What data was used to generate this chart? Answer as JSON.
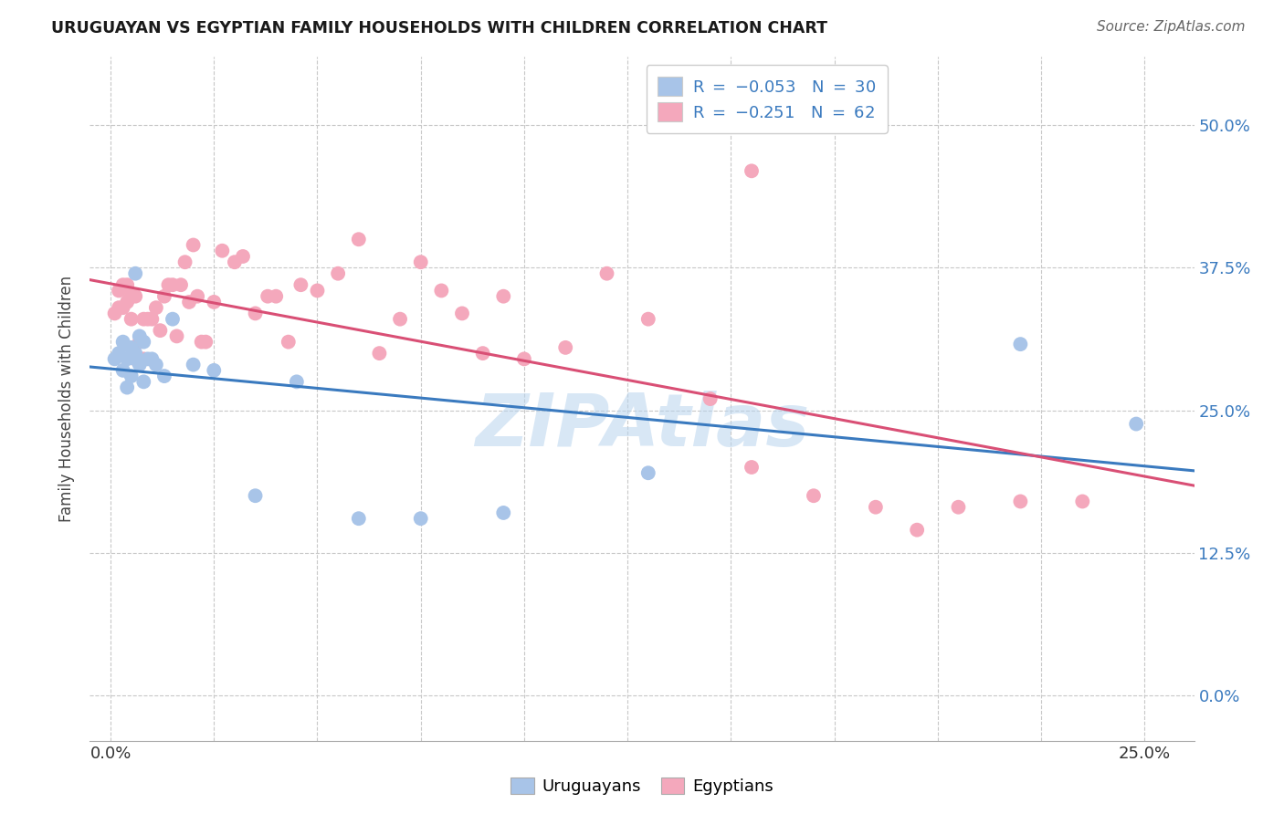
{
  "title": "URUGUAYAN VS EGYPTIAN FAMILY HOUSEHOLDS WITH CHILDREN CORRELATION CHART",
  "source": "Source: ZipAtlas.com",
  "ylabel": "Family Households with Children",
  "legend_label1": "Uruguayans",
  "legend_label2": "Egyptians",
  "uruguayan_color": "#a8c4e8",
  "egyptian_color": "#f4a8bc",
  "trendline_uruguayan": "#3a7abf",
  "trendline_egyptian": "#d94f75",
  "watermark": "ZIPAtlas",
  "watermark_color": "#b8d4ee",
  "background_color": "#ffffff",
  "grid_color": "#c8c8c8",
  "yticks": [
    0.0,
    0.125,
    0.25,
    0.375,
    0.5
  ],
  "ytick_labels_right": [
    "0.0%",
    "12.5%",
    "25.0%",
    "37.5%",
    "50.0%"
  ],
  "xticks": [
    0.0,
    0.025,
    0.05,
    0.075,
    0.1,
    0.125,
    0.15,
    0.175,
    0.2,
    0.225,
    0.25
  ],
  "xlim": [
    -0.005,
    0.262
  ],
  "ylim": [
    -0.04,
    0.56
  ],
  "uruguayan_x": [
    0.001,
    0.002,
    0.003,
    0.003,
    0.004,
    0.004,
    0.005,
    0.005,
    0.006,
    0.006,
    0.006,
    0.007,
    0.007,
    0.008,
    0.008,
    0.009,
    0.01,
    0.011,
    0.013,
    0.015,
    0.02,
    0.025,
    0.035,
    0.045,
    0.06,
    0.075,
    0.095,
    0.13,
    0.22,
    0.248
  ],
  "uruguayan_y": [
    0.295,
    0.3,
    0.285,
    0.31,
    0.295,
    0.27,
    0.305,
    0.28,
    0.3,
    0.295,
    0.37,
    0.315,
    0.29,
    0.31,
    0.275,
    0.295,
    0.295,
    0.29,
    0.28,
    0.33,
    0.29,
    0.285,
    0.175,
    0.275,
    0.155,
    0.155,
    0.16,
    0.195,
    0.308,
    0.238
  ],
  "egyptian_x": [
    0.001,
    0.002,
    0.002,
    0.003,
    0.003,
    0.004,
    0.004,
    0.005,
    0.005,
    0.006,
    0.006,
    0.007,
    0.007,
    0.008,
    0.008,
    0.009,
    0.01,
    0.011,
    0.012,
    0.013,
    0.014,
    0.015,
    0.016,
    0.017,
    0.018,
    0.019,
    0.02,
    0.021,
    0.022,
    0.023,
    0.025,
    0.027,
    0.03,
    0.032,
    0.035,
    0.038,
    0.04,
    0.043,
    0.046,
    0.05,
    0.055,
    0.06,
    0.065,
    0.07,
    0.075,
    0.08,
    0.085,
    0.09,
    0.095,
    0.1,
    0.11,
    0.12,
    0.13,
    0.145,
    0.155,
    0.17,
    0.185,
    0.205,
    0.22,
    0.235,
    0.155,
    0.195
  ],
  "egyptian_y": [
    0.335,
    0.355,
    0.34,
    0.36,
    0.34,
    0.345,
    0.36,
    0.33,
    0.35,
    0.35,
    0.295,
    0.31,
    0.295,
    0.295,
    0.33,
    0.33,
    0.33,
    0.34,
    0.32,
    0.35,
    0.36,
    0.36,
    0.315,
    0.36,
    0.38,
    0.345,
    0.395,
    0.35,
    0.31,
    0.31,
    0.345,
    0.39,
    0.38,
    0.385,
    0.335,
    0.35,
    0.35,
    0.31,
    0.36,
    0.355,
    0.37,
    0.4,
    0.3,
    0.33,
    0.38,
    0.355,
    0.335,
    0.3,
    0.35,
    0.295,
    0.305,
    0.37,
    0.33,
    0.26,
    0.2,
    0.175,
    0.165,
    0.165,
    0.17,
    0.17,
    0.46,
    0.145
  ]
}
